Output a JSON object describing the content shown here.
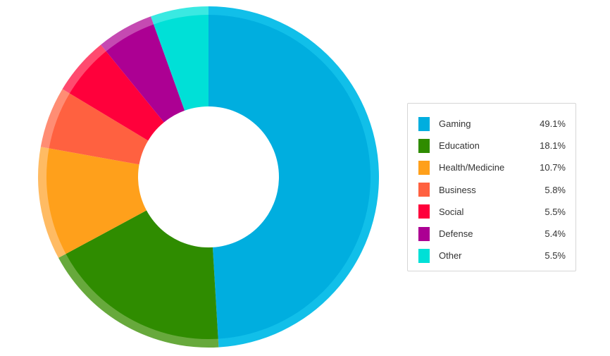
{
  "chart_data": {
    "type": "pie",
    "style": "donut",
    "legend_position": "right",
    "slices": [
      {
        "label": "Gaming",
        "value_text": "49.1%",
        "value": 49.1,
        "color": "#00aedf",
        "edge_color": "#11bfe9"
      },
      {
        "label": "Education",
        "value_text": "18.1%",
        "value": 18.1,
        "color": "#2f8c00",
        "edge_color": "#67a93c"
      },
      {
        "label": "Health/Medicine",
        "value_text": "10.7%",
        "value": 10.7,
        "color": "#ffa01b",
        "edge_color": "#ffbb63"
      },
      {
        "label": "Business",
        "value_text": "5.8%",
        "value": 5.8,
        "color": "#ff6140",
        "edge_color": "#ff8d74"
      },
      {
        "label": "Social",
        "value_text": "5.5%",
        "value": 5.5,
        "color": "#ff003b",
        "edge_color": "#ff4a6f"
      },
      {
        "label": "Defense",
        "value_text": "5.4%",
        "value": 5.4,
        "color": "#ac0093",
        "edge_color": "#c54ab2"
      },
      {
        "label": "Other",
        "value_text": "5.5%",
        "value": 5.5,
        "color": "#00e0d7",
        "edge_color": "#3ae9e2"
      }
    ]
  }
}
